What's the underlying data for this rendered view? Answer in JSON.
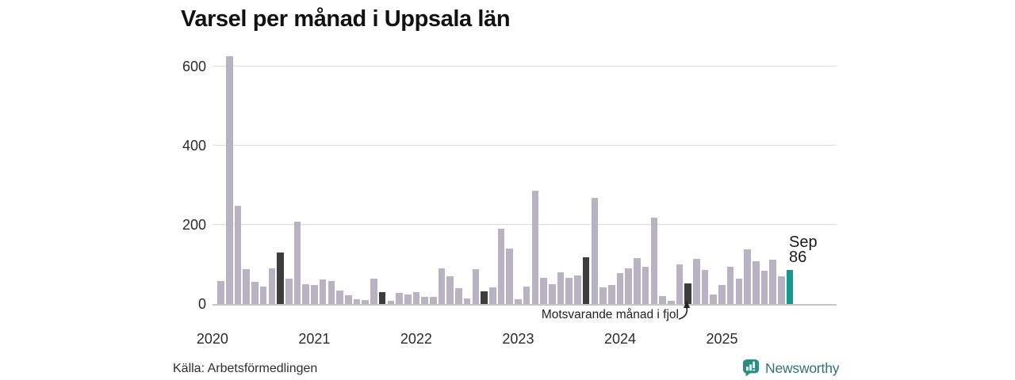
{
  "title": "Varsel per månad i Uppsala län",
  "source": "Källa: Arbetsförmedlingen",
  "annotation": {
    "text": "Motsvarande månad i fjol",
    "points_to": "2024-09"
  },
  "current_label": {
    "line1": "Sep",
    "line2": "86"
  },
  "logo": {
    "name": "Newsworthy"
  },
  "colors": {
    "bar_normal": "#b7b3c2",
    "bar_same_month_prev_year": "#3d3c3e",
    "bar_current": "#13998c",
    "gridline": "#dedede",
    "baseline": "#c6c6c6",
    "logo_icon": "#2e8b84",
    "logo_text": "#2f7277",
    "text": "#1a1a1a"
  },
  "chart_data": {
    "type": "bar",
    "title": "Varsel per månad i Uppsala län",
    "xlabel": "",
    "ylabel": "",
    "ylim": [
      0,
      650
    ],
    "yticks": [
      0,
      200,
      400,
      600
    ],
    "year_ticks": [
      2020,
      2021,
      2022,
      2023,
      2024,
      2025
    ],
    "grid": "horizontal",
    "legend": "none",
    "highlight_current": "2025-09",
    "highlight_same_month_prev_years": [
      "2020-09",
      "2021-09",
      "2022-09",
      "2023-09",
      "2024-09"
    ],
    "bars": [
      {
        "month": "2020-02",
        "value": 58,
        "role": "normal"
      },
      {
        "month": "2020-03",
        "value": 627,
        "role": "normal"
      },
      {
        "month": "2020-04",
        "value": 248,
        "role": "normal"
      },
      {
        "month": "2020-05",
        "value": 88,
        "role": "normal"
      },
      {
        "month": "2020-06",
        "value": 56,
        "role": "normal"
      },
      {
        "month": "2020-07",
        "value": 44,
        "role": "normal"
      },
      {
        "month": "2020-08",
        "value": 91,
        "role": "normal"
      },
      {
        "month": "2020-09",
        "value": 131,
        "role": "prev_year_sep"
      },
      {
        "month": "2020-10",
        "value": 65,
        "role": "normal"
      },
      {
        "month": "2020-11",
        "value": 209,
        "role": "normal"
      },
      {
        "month": "2020-12",
        "value": 51,
        "role": "normal"
      },
      {
        "month": "2021-01",
        "value": 48,
        "role": "normal"
      },
      {
        "month": "2021-02",
        "value": 63,
        "role": "normal"
      },
      {
        "month": "2021-03",
        "value": 59,
        "role": "normal"
      },
      {
        "month": "2021-04",
        "value": 35,
        "role": "normal"
      },
      {
        "month": "2021-05",
        "value": 23,
        "role": "normal"
      },
      {
        "month": "2021-06",
        "value": 13,
        "role": "normal"
      },
      {
        "month": "2021-07",
        "value": 11,
        "role": "normal"
      },
      {
        "month": "2021-08",
        "value": 65,
        "role": "normal"
      },
      {
        "month": "2021-09",
        "value": 31,
        "role": "prev_year_sep"
      },
      {
        "month": "2021-10",
        "value": 8,
        "role": "normal"
      },
      {
        "month": "2021-11",
        "value": 28,
        "role": "normal"
      },
      {
        "month": "2021-12",
        "value": 25,
        "role": "normal"
      },
      {
        "month": "2022-01",
        "value": 31,
        "role": "normal"
      },
      {
        "month": "2022-02",
        "value": 18,
        "role": "normal"
      },
      {
        "month": "2022-03",
        "value": 18,
        "role": "normal"
      },
      {
        "month": "2022-04",
        "value": 90,
        "role": "normal"
      },
      {
        "month": "2022-05",
        "value": 70,
        "role": "normal"
      },
      {
        "month": "2022-06",
        "value": 41,
        "role": "normal"
      },
      {
        "month": "2022-07",
        "value": 14,
        "role": "normal"
      },
      {
        "month": "2022-08",
        "value": 88,
        "role": "normal"
      },
      {
        "month": "2022-09",
        "value": 33,
        "role": "prev_year_sep"
      },
      {
        "month": "2022-10",
        "value": 43,
        "role": "normal"
      },
      {
        "month": "2022-11",
        "value": 190,
        "role": "normal"
      },
      {
        "month": "2022-12",
        "value": 141,
        "role": "normal"
      },
      {
        "month": "2023-01",
        "value": 13,
        "role": "normal"
      },
      {
        "month": "2023-02",
        "value": 45,
        "role": "normal"
      },
      {
        "month": "2023-03",
        "value": 286,
        "role": "normal"
      },
      {
        "month": "2023-04",
        "value": 67,
        "role": "normal"
      },
      {
        "month": "2023-05",
        "value": 51,
        "role": "normal"
      },
      {
        "month": "2023-06",
        "value": 81,
        "role": "normal"
      },
      {
        "month": "2023-07",
        "value": 67,
        "role": "normal"
      },
      {
        "month": "2023-08",
        "value": 73,
        "role": "normal"
      },
      {
        "month": "2023-09",
        "value": 118,
        "role": "prev_year_sep"
      },
      {
        "month": "2023-10",
        "value": 269,
        "role": "normal"
      },
      {
        "month": "2023-11",
        "value": 43,
        "role": "normal"
      },
      {
        "month": "2023-12",
        "value": 49,
        "role": "normal"
      },
      {
        "month": "2024-01",
        "value": 79,
        "role": "normal"
      },
      {
        "month": "2024-02",
        "value": 91,
        "role": "normal"
      },
      {
        "month": "2024-03",
        "value": 117,
        "role": "normal"
      },
      {
        "month": "2024-04",
        "value": 95,
        "role": "normal"
      },
      {
        "month": "2024-05",
        "value": 218,
        "role": "normal"
      },
      {
        "month": "2024-06",
        "value": 20,
        "role": "normal"
      },
      {
        "month": "2024-07",
        "value": 8,
        "role": "normal"
      },
      {
        "month": "2024-08",
        "value": 101,
        "role": "normal"
      },
      {
        "month": "2024-09",
        "value": 53,
        "role": "prev_year_sep"
      },
      {
        "month": "2024-10",
        "value": 115,
        "role": "normal"
      },
      {
        "month": "2024-11",
        "value": 87,
        "role": "normal"
      },
      {
        "month": "2024-12",
        "value": 25,
        "role": "normal"
      },
      {
        "month": "2025-01",
        "value": 49,
        "role": "normal"
      },
      {
        "month": "2025-02",
        "value": 95,
        "role": "normal"
      },
      {
        "month": "2025-03",
        "value": 65,
        "role": "normal"
      },
      {
        "month": "2025-04",
        "value": 139,
        "role": "normal"
      },
      {
        "month": "2025-05",
        "value": 109,
        "role": "normal"
      },
      {
        "month": "2025-06",
        "value": 85,
        "role": "normal"
      },
      {
        "month": "2025-07",
        "value": 113,
        "role": "normal"
      },
      {
        "month": "2025-08",
        "value": 70,
        "role": "normal"
      },
      {
        "month": "2025-09",
        "value": 86,
        "role": "current"
      }
    ]
  }
}
